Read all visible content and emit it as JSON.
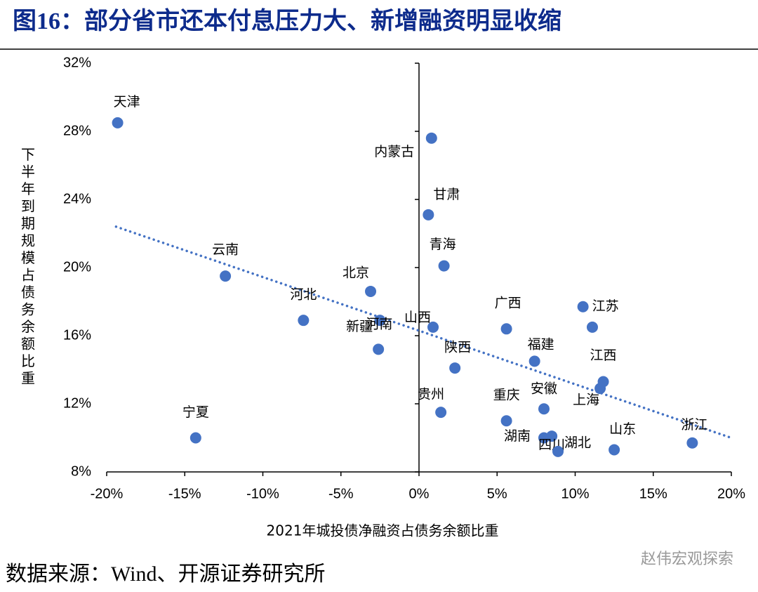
{
  "chart_data": {
    "type": "scatter",
    "title": "图16：部分省市还本付息压力大、新增融资明显收缩",
    "x_label": "2021年城投债净融资占债务余额比重",
    "y_label": "下半年到期规模占债务余额比重",
    "source": "数据来源：Wind、开源证券研究所",
    "watermark": "赵伟宏观探索",
    "color": "#4472c4",
    "labels": [
      "天津",
      "内蒙古",
      "甘肃",
      "青海",
      "云南",
      "北京",
      "河北",
      "河南",
      "新疆",
      "山西",
      "广西",
      "江苏",
      null,
      "陕西",
      "福建",
      "江西",
      "上海",
      "贵州",
      "重庆",
      "安徽",
      "湖南",
      "四川",
      "湖北",
      "山东",
      "浙江",
      "宁夏"
    ],
    "x": [
      -19.3,
      0.8,
      0.6,
      1.6,
      -12.4,
      -3.1,
      -7.4,
      -2.5,
      -2.6,
      0.9,
      5.6,
      10.5,
      11.1,
      2.3,
      7.4,
      11.8,
      11.6,
      1.4,
      5.6,
      8.0,
      8.0,
      8.5,
      8.9,
      12.5,
      17.5,
      -14.3
    ],
    "values": [
      28.5,
      27.6,
      23.1,
      20.1,
      19.5,
      18.6,
      16.9,
      16.9,
      15.2,
      16.5,
      16.4,
      17.7,
      16.5,
      14.1,
      14.5,
      13.3,
      12.9,
      11.5,
      11.0,
      11.7,
      10.0,
      10.1,
      9.2,
      9.3,
      9.7,
      10.0
    ],
    "trendline": {
      "color": "#4472c4",
      "x": [
        -19.4,
        20
      ],
      "values": [
        22.4,
        10.0
      ]
    },
    "xlim": [
      -20,
      20
    ],
    "ylim": [
      8,
      32
    ],
    "xticks": [
      {
        "value": -20,
        "label": "-20%"
      },
      {
        "value": -15,
        "label": "-15%"
      },
      {
        "value": -10,
        "label": "-10%"
      },
      {
        "value": -5,
        "label": "-5%"
      },
      {
        "value": 0,
        "label": "0%"
      },
      {
        "value": 5,
        "label": "5%"
      },
      {
        "value": 10,
        "label": "10%"
      },
      {
        "value": 15,
        "label": "15%"
      },
      {
        "value": 20,
        "label": "20%"
      }
    ],
    "yticks": [
      {
        "value": 8,
        "label": "8%"
      },
      {
        "value": 12,
        "label": "12%"
      },
      {
        "value": 16,
        "label": "16%"
      },
      {
        "value": 20,
        "label": "20%"
      },
      {
        "value": 24,
        "label": "24%"
      },
      {
        "value": 28,
        "label": "28%"
      },
      {
        "value": 32,
        "label": "32%"
      }
    ],
    "grid": false
  }
}
